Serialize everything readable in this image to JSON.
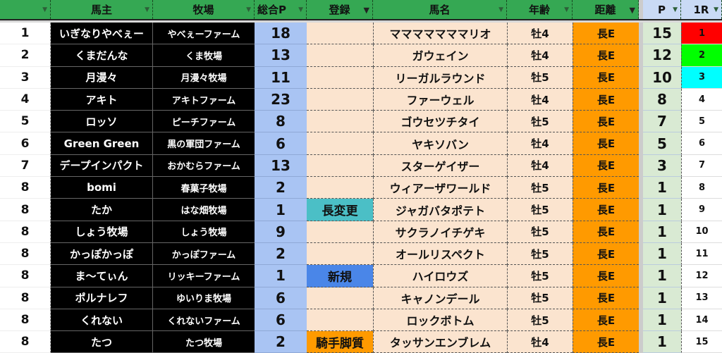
{
  "headers": {
    "rank": "",
    "owner": "馬主",
    "farm": "牧場",
    "total": "総合P",
    "reg": "登録",
    "horse": "馬名",
    "age": "年齢",
    "dist": "距離",
    "p": "P",
    "r1": "1R"
  },
  "colors": {
    "header": "#35a853",
    "total": "#a9c4f3",
    "race": "#fbe4cf",
    "distance": "#ff9a00",
    "points": "#d9ead3",
    "r1_1": "#ff0000",
    "r1_2": "#00ff00",
    "r1_3": "#00ffff",
    "reg_長変更": "#4bbfc6",
    "reg_新規": "#4a86e8",
    "reg_騎手脚質": "#ff9a00"
  },
  "rows": [
    {
      "rank": "1",
      "owner": "いぎなりやべぇー",
      "farm": "やべぇーファーム",
      "total": "18",
      "reg": "",
      "horse": "マママママママリオ",
      "age": "牡4",
      "dist": "長E",
      "p": "15",
      "r1": "1"
    },
    {
      "rank": "2",
      "owner": "くまだんな",
      "farm": "くま牧場",
      "total": "13",
      "reg": "",
      "horse": "ガウェイン",
      "age": "牡4",
      "dist": "長E",
      "p": "12",
      "r1": "2"
    },
    {
      "rank": "3",
      "owner": "月漫々",
      "farm": "月漫々牧場",
      "total": "11",
      "reg": "",
      "horse": "リーガルラウンド",
      "age": "牡5",
      "dist": "長E",
      "p": "10",
      "r1": "3"
    },
    {
      "rank": "4",
      "owner": "アキト",
      "farm": "アキトファーム",
      "total": "23",
      "reg": "",
      "horse": "ファーウェル",
      "age": "牡4",
      "dist": "長E",
      "p": "8",
      "r1": "4"
    },
    {
      "rank": "5",
      "owner": "ロッソ",
      "farm": "ピーチファーム",
      "total": "8",
      "reg": "",
      "horse": "ゴウセツチタイ",
      "age": "牡5",
      "dist": "長E",
      "p": "7",
      "r1": "5"
    },
    {
      "rank": "6",
      "owner": "Green Green",
      "farm": "黒の軍団ファーム",
      "total": "6",
      "reg": "",
      "horse": "ヤキソバン",
      "age": "牡4",
      "dist": "長E",
      "p": "5",
      "r1": "6"
    },
    {
      "rank": "7",
      "owner": "デープインパクト",
      "farm": "おかむらファーム",
      "total": "13",
      "reg": "",
      "horse": "スターゲイザー",
      "age": "牡4",
      "dist": "長E",
      "p": "3",
      "r1": "7"
    },
    {
      "rank": "8",
      "owner": "bomi",
      "farm": "春菓子牧場",
      "total": "2",
      "reg": "",
      "horse": "ウィアーザワールド",
      "age": "牡5",
      "dist": "長E",
      "p": "1",
      "r1": "8"
    },
    {
      "rank": "8",
      "owner": "たか",
      "farm": "はな畑牧場",
      "total": "1",
      "reg": "長変更",
      "horse": "ジャガバタポテト",
      "age": "牡5",
      "dist": "長E",
      "p": "1",
      "r1": "9"
    },
    {
      "rank": "8",
      "owner": "しょう牧場",
      "farm": "しょう牧場",
      "total": "9",
      "reg": "",
      "horse": "サクラノイチゲキ",
      "age": "牡5",
      "dist": "長E",
      "p": "1",
      "r1": "10"
    },
    {
      "rank": "8",
      "owner": "かっぽかっぽ",
      "farm": "かっぽファーム",
      "total": "2",
      "reg": "",
      "horse": "オールリスペクト",
      "age": "牡5",
      "dist": "長E",
      "p": "1",
      "r1": "11"
    },
    {
      "rank": "8",
      "owner": "ま〜てぃん",
      "farm": "リッキーファーム",
      "total": "1",
      "reg": "新規",
      "horse": "ハイロウズ",
      "age": "牡5",
      "dist": "長E",
      "p": "1",
      "r1": "12"
    },
    {
      "rank": "8",
      "owner": "ポルナレフ",
      "farm": "ゆいりま牧場",
      "total": "6",
      "reg": "",
      "horse": "キャノンデール",
      "age": "牡5",
      "dist": "長E",
      "p": "1",
      "r1": "13"
    },
    {
      "rank": "8",
      "owner": "くれない",
      "farm": "くれないファーム",
      "total": "6",
      "reg": "",
      "horse": "ロックボトム",
      "age": "牡5",
      "dist": "長E",
      "p": "1",
      "r1": "14"
    },
    {
      "rank": "8",
      "owner": "たつ",
      "farm": "たつ牧場",
      "total": "2",
      "reg": "騎手脚質",
      "horse": "タッサンエンブレム",
      "age": "牡4",
      "dist": "長E",
      "p": "1",
      "r1": "15"
    }
  ]
}
